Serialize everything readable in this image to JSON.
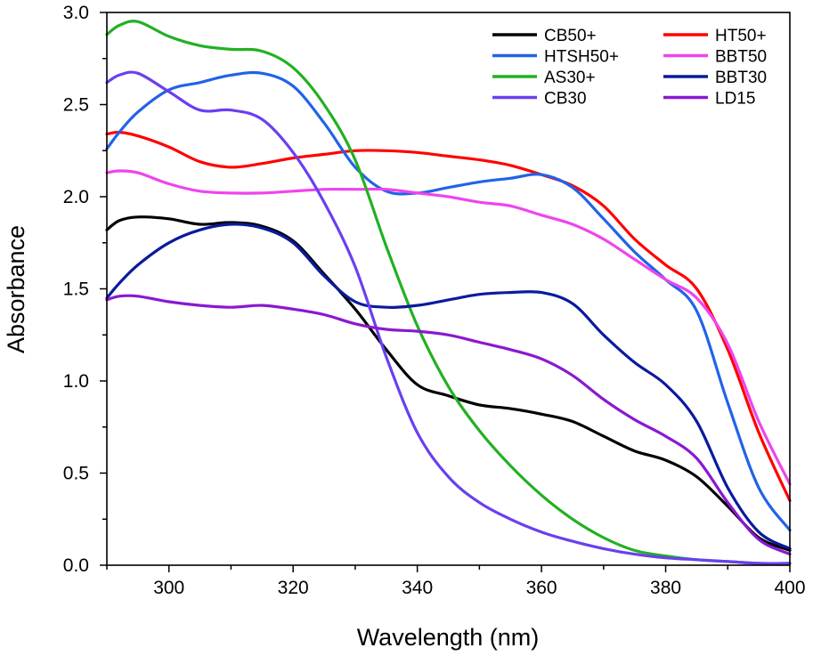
{
  "chart_data": {
    "type": "line",
    "xlabel": "Wavelength (nm)",
    "ylabel": "Absorbance",
    "xlim": [
      290,
      400
    ],
    "ylim": [
      0.0,
      3.0
    ],
    "x_ticks": [
      300,
      320,
      340,
      360,
      380,
      400
    ],
    "x_tick_labels": [
      "300",
      "320",
      "340",
      "360",
      "380",
      "400"
    ],
    "y_ticks": [
      0.0,
      0.5,
      1.0,
      1.5,
      2.0,
      2.5,
      3.0
    ],
    "y_tick_labels": [
      "0.0",
      "0.5",
      "1.0",
      "1.5",
      "2.0",
      "2.5",
      "3.0"
    ],
    "grid": false,
    "legend_position": "top-right",
    "legend_columns": 2,
    "x": [
      290,
      292,
      295,
      300,
      305,
      310,
      315,
      320,
      325,
      330,
      335,
      340,
      345,
      350,
      355,
      360,
      365,
      370,
      375,
      380,
      385,
      390,
      395,
      400
    ],
    "series": [
      {
        "name": "CB50+",
        "color": "#000000",
        "values": [
          1.82,
          1.87,
          1.89,
          1.88,
          1.85,
          1.86,
          1.84,
          1.76,
          1.58,
          1.39,
          1.17,
          0.98,
          0.92,
          0.87,
          0.85,
          0.82,
          0.78,
          0.7,
          0.62,
          0.57,
          0.48,
          0.32,
          0.15,
          0.08
        ]
      },
      {
        "name": "HT50+",
        "color": "#ff0000",
        "values": [
          2.34,
          2.35,
          2.33,
          2.27,
          2.19,
          2.16,
          2.18,
          2.21,
          2.23,
          2.25,
          2.25,
          2.24,
          2.22,
          2.2,
          2.17,
          2.12,
          2.06,
          1.95,
          1.77,
          1.63,
          1.5,
          1.17,
          0.72,
          0.35
        ]
      },
      {
        "name": "HTSH50+",
        "color": "#2163e8",
        "values": [
          2.26,
          2.35,
          2.46,
          2.58,
          2.62,
          2.66,
          2.67,
          2.6,
          2.4,
          2.16,
          2.03,
          2.02,
          2.05,
          2.08,
          2.1,
          2.12,
          2.05,
          1.88,
          1.7,
          1.55,
          1.38,
          0.88,
          0.42,
          0.19
        ]
      },
      {
        "name": "BBT50",
        "color": "#ee44ee",
        "values": [
          2.13,
          2.14,
          2.13,
          2.07,
          2.03,
          2.02,
          2.02,
          2.03,
          2.04,
          2.04,
          2.04,
          2.02,
          2.0,
          1.97,
          1.95,
          1.9,
          1.85,
          1.77,
          1.66,
          1.55,
          1.45,
          1.2,
          0.78,
          0.44
        ]
      },
      {
        "name": "AS30+",
        "color": "#22b022",
        "values": [
          2.88,
          2.93,
          2.95,
          2.87,
          2.82,
          2.8,
          2.79,
          2.7,
          2.5,
          2.2,
          1.73,
          1.3,
          0.97,
          0.73,
          0.54,
          0.38,
          0.25,
          0.15,
          0.08,
          0.05,
          0.03,
          0.02,
          0.01,
          0.01
        ]
      },
      {
        "name": "BBT30",
        "color": "#0a1a9e",
        "values": [
          1.45,
          1.53,
          1.63,
          1.75,
          1.82,
          1.85,
          1.83,
          1.75,
          1.57,
          1.43,
          1.4,
          1.41,
          1.44,
          1.47,
          1.48,
          1.48,
          1.42,
          1.25,
          1.1,
          0.98,
          0.78,
          0.42,
          0.18,
          0.09
        ]
      },
      {
        "name": "CB30",
        "color": "#6a3ff0",
        "values": [
          2.62,
          2.66,
          2.67,
          2.57,
          2.47,
          2.47,
          2.42,
          2.24,
          1.97,
          1.62,
          1.13,
          0.72,
          0.48,
          0.34,
          0.25,
          0.18,
          0.13,
          0.09,
          0.06,
          0.04,
          0.03,
          0.02,
          0.01,
          0.01
        ]
      },
      {
        "name": "LD15",
        "color": "#8a18d0",
        "values": [
          1.44,
          1.46,
          1.46,
          1.43,
          1.41,
          1.4,
          1.41,
          1.39,
          1.36,
          1.31,
          1.28,
          1.27,
          1.25,
          1.21,
          1.17,
          1.12,
          1.03,
          0.9,
          0.79,
          0.7,
          0.58,
          0.34,
          0.14,
          0.06
        ]
      }
    ]
  }
}
